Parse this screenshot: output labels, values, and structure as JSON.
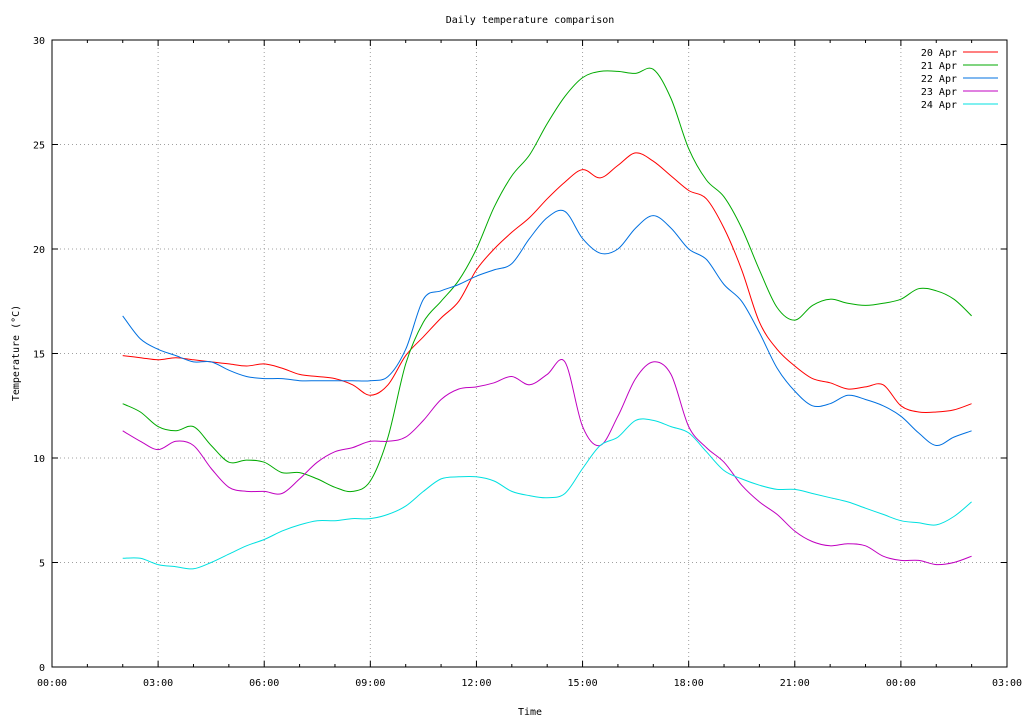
{
  "chart_data": {
    "type": "line",
    "title": "Daily temperature comparison",
    "xlabel": "Time",
    "ylabel": "Temperature (°C)",
    "xlim": [
      0,
      27
    ],
    "ylim": [
      0,
      30
    ],
    "x_ticks": [
      0,
      3,
      6,
      9,
      12,
      15,
      18,
      21,
      24,
      27
    ],
    "x_tick_labels": [
      "00:00",
      "03:00",
      "06:00",
      "09:00",
      "12:00",
      "15:00",
      "18:00",
      "21:00",
      "00:00",
      "03:00"
    ],
    "y_ticks": [
      0,
      5,
      10,
      15,
      20,
      25,
      30
    ],
    "y_tick_labels": [
      "0",
      "5",
      "10",
      "15",
      "20",
      "25",
      "30"
    ],
    "grid": true,
    "legend_position": "top-right",
    "x": [
      2.0,
      2.5,
      3.0,
      3.5,
      4.0,
      4.5,
      5.0,
      5.5,
      6.0,
      6.5,
      7.0,
      7.5,
      8.0,
      8.5,
      9.0,
      9.5,
      10.0,
      10.5,
      11.0,
      11.5,
      12.0,
      12.5,
      13.0,
      13.5,
      14.0,
      14.5,
      15.0,
      15.5,
      16.0,
      16.5,
      17.0,
      17.5,
      18.0,
      18.5,
      19.0,
      19.5,
      20.0,
      20.5,
      21.0,
      21.5,
      22.0,
      22.5,
      23.0,
      23.5,
      24.0,
      24.5,
      25.0,
      25.5,
      26.0
    ],
    "series": [
      {
        "name": "20 Apr",
        "color": "#ff0000",
        "values": [
          14.9,
          14.8,
          14.7,
          14.8,
          14.7,
          14.6,
          14.5,
          14.4,
          14.5,
          14.3,
          14.0,
          13.9,
          13.8,
          13.5,
          13.0,
          13.5,
          14.9,
          15.8,
          16.7,
          17.5,
          19.0,
          20.0,
          20.8,
          21.5,
          22.4,
          23.2,
          23.8,
          23.4,
          24.0,
          24.6,
          24.2,
          23.5,
          22.8,
          22.4,
          21.0,
          19.0,
          16.5,
          15.2,
          14.4,
          13.8,
          13.6,
          13.3,
          13.4,
          13.5,
          12.5,
          12.2,
          12.2,
          12.3,
          12.6
        ]
      },
      {
        "name": "21 Apr",
        "color": "#00aa00",
        "values": [
          12.6,
          12.2,
          11.5,
          11.3,
          11.5,
          10.6,
          9.8,
          9.9,
          9.8,
          9.3,
          9.3,
          9.0,
          8.6,
          8.4,
          8.9,
          11.0,
          14.5,
          16.5,
          17.5,
          18.5,
          20.0,
          22.0,
          23.5,
          24.5,
          26.0,
          27.3,
          28.2,
          28.5,
          28.5,
          28.4,
          28.6,
          27.2,
          24.8,
          23.3,
          22.5,
          21.0,
          19.0,
          17.2,
          16.6,
          17.3,
          17.6,
          17.4,
          17.3,
          17.4,
          17.6,
          18.1,
          18.0,
          17.6,
          16.8
        ]
      },
      {
        "name": "22 Apr",
        "color": "#0070e0",
        "values": [
          16.8,
          15.7,
          15.2,
          14.9,
          14.6,
          14.6,
          14.2,
          13.9,
          13.8,
          13.8,
          13.7,
          13.7,
          13.7,
          13.7,
          13.7,
          13.9,
          15.2,
          17.6,
          18.0,
          18.3,
          18.7,
          19.0,
          19.3,
          20.5,
          21.5,
          21.8,
          20.5,
          19.8,
          20.0,
          21.0,
          21.6,
          21.0,
          20.0,
          19.5,
          18.3,
          17.5,
          16.0,
          14.3,
          13.2,
          12.5,
          12.6,
          13.0,
          12.8,
          12.5,
          12.0,
          11.2,
          10.6,
          11.0,
          11.3
        ]
      },
      {
        "name": "23 Apr",
        "color": "#c000c0",
        "values": [
          11.3,
          10.8,
          10.4,
          10.8,
          10.6,
          9.5,
          8.6,
          8.4,
          8.4,
          8.3,
          9.0,
          9.8,
          10.3,
          10.5,
          10.8,
          10.8,
          11.0,
          11.8,
          12.8,
          13.3,
          13.4,
          13.6,
          13.9,
          13.5,
          14.0,
          14.6,
          11.5,
          10.6,
          12.0,
          13.8,
          14.6,
          14.0,
          11.5,
          10.5,
          9.8,
          8.7,
          7.9,
          7.3,
          6.5,
          6.0,
          5.8,
          5.9,
          5.8,
          5.3,
          5.1,
          5.1,
          4.9,
          5.0,
          5.3
        ]
      },
      {
        "name": "24 Apr",
        "color": "#00e0e0",
        "values": [
          5.2,
          5.2,
          4.9,
          4.8,
          4.7,
          5.0,
          5.4,
          5.8,
          6.1,
          6.5,
          6.8,
          7.0,
          7.0,
          7.1,
          7.1,
          7.3,
          7.7,
          8.4,
          9.0,
          9.1,
          9.1,
          8.9,
          8.4,
          8.2,
          8.1,
          8.3,
          9.5,
          10.6,
          11.0,
          11.8,
          11.8,
          11.5,
          11.2,
          10.3,
          9.4,
          9.0,
          8.7,
          8.5,
          8.5,
          8.3,
          8.1,
          7.9,
          7.6,
          7.3,
          7.0,
          6.9,
          6.8,
          7.2,
          7.9
        ]
      }
    ]
  }
}
